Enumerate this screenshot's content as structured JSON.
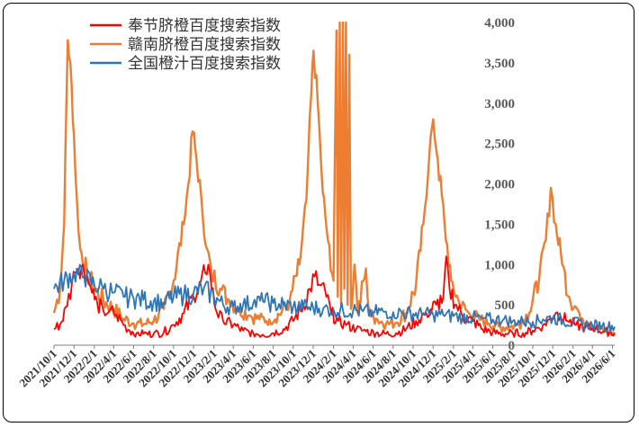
{
  "chart_data": {
    "type": "line",
    "title": "",
    "xlabel": "",
    "ylabel": "",
    "y_axis_side": "right",
    "ylim": [
      0,
      4000
    ],
    "y_ticks": [
      0,
      500,
      1000,
      1500,
      2000,
      2500,
      3000,
      3500,
      4000
    ],
    "y_tick_labels": [
      "0",
      "500",
      "1,000",
      "1,500",
      "2,000",
      "2,500",
      "3,000",
      "3,500",
      "4,000"
    ],
    "x_range": [
      "2021/10/1",
      "2026/6/8"
    ],
    "x_tick_labels": [
      "2021/10/1",
      "2021/12/1",
      "2022/2/1",
      "2022/4/1",
      "2022/6/1",
      "2022/8/1",
      "2022/10/1",
      "2022/12/1",
      "2023/2/1",
      "2023/4/1",
      "2023/6/1",
      "2023/8/1",
      "2023/10/1",
      "2023/12/1",
      "2024/2/1",
      "2024/4/1",
      "2024/6/1",
      "2024/8/1",
      "2024/10/1",
      "2024/12/1",
      "2025/2/1",
      "2025/4/1",
      "2025/6/1",
      "2025/8/1",
      "2025/10/1",
      "2025/12/1",
      "2026/2/1",
      "2026/4/1",
      "2026/6/1"
    ],
    "legend_position": "top-left",
    "grid": false,
    "series": [
      {
        "name": "奉节脐橙百度搜索指数",
        "color": "#ff0000",
        "points": [
          [
            "2021/10/1",
            200
          ],
          [
            "2021/10/20",
            260
          ],
          [
            "2021/11/10",
            480
          ],
          [
            "2021/11/25",
            780
          ],
          [
            "2021/12/5",
            900
          ],
          [
            "2021/12/15",
            950
          ],
          [
            "2021/12/28",
            1000
          ],
          [
            "2022/1/10",
            850
          ],
          [
            "2022/1/25",
            650
          ],
          [
            "2022/2/10",
            520
          ],
          [
            "2022/3/1",
            420
          ],
          [
            "2022/3/20",
            430
          ],
          [
            "2022/4/10",
            380
          ],
          [
            "2022/5/1",
            250
          ],
          [
            "2022/5/20",
            180
          ],
          [
            "2022/6/10",
            150
          ],
          [
            "2022/7/1",
            140
          ],
          [
            "2022/8/1",
            140
          ],
          [
            "2022/9/1",
            160
          ],
          [
            "2022/10/1",
            250
          ],
          [
            "2022/11/1",
            400
          ],
          [
            "2022/12/1",
            600
          ],
          [
            "2022/12/20",
            750
          ],
          [
            "2023/1/5",
            900
          ],
          [
            "2023/1/15",
            1000
          ],
          [
            "2023/1/25",
            700
          ],
          [
            "2023/2/10",
            400
          ],
          [
            "2023/3/1",
            300
          ],
          [
            "2023/4/1",
            250
          ],
          [
            "2023/5/1",
            180
          ],
          [
            "2023/6/1",
            150
          ],
          [
            "2023/7/1",
            130
          ],
          [
            "2023/8/1",
            150
          ],
          [
            "2023/9/1",
            200
          ],
          [
            "2023/10/1",
            300
          ],
          [
            "2023/11/1",
            500
          ],
          [
            "2023/11/20",
            700
          ],
          [
            "2023/12/5",
            850
          ],
          [
            "2023/12/20",
            750
          ],
          [
            "2024/1/10",
            600
          ],
          [
            "2024/1/25",
            400
          ],
          [
            "2024/2/15",
            300
          ],
          [
            "2024/3/10",
            250
          ],
          [
            "2024/4/10",
            200
          ],
          [
            "2024/5/10",
            170
          ],
          [
            "2024/6/10",
            150
          ],
          [
            "2024/7/10",
            140
          ],
          [
            "2024/8/10",
            150
          ],
          [
            "2024/9/10",
            200
          ],
          [
            "2024/10/10",
            300
          ],
          [
            "2024/11/10",
            400
          ],
          [
            "2024/12/10",
            500
          ],
          [
            "2025/1/1",
            600
          ],
          [
            "2025/1/10",
            1100
          ],
          [
            "2025/1/20",
            700
          ],
          [
            "2025/2/10",
            500
          ],
          [
            "2025/3/1",
            350
          ],
          [
            "2025/4/1",
            300
          ],
          [
            "2025/5/1",
            200
          ],
          [
            "2025/6/1",
            160
          ],
          [
            "2025/7/1",
            140
          ],
          [
            "2025/8/1",
            150
          ],
          [
            "2025/9/1",
            150
          ],
          [
            "2025/10/1",
            180
          ],
          [
            "2025/11/1",
            250
          ],
          [
            "2025/11/20",
            320
          ],
          [
            "2025/12/10",
            400
          ],
          [
            "2025/12/25",
            360
          ],
          [
            "2026/1/15",
            300
          ],
          [
            "2026/2/10",
            250
          ],
          [
            "2026/3/10",
            220
          ],
          [
            "2026/4/10",
            200
          ],
          [
            "2026/5/10",
            170
          ],
          [
            "2026/6/8",
            150
          ]
        ]
      },
      {
        "name": "赣南脐橙百度搜索指数",
        "color": "#ed7d31",
        "points": [
          [
            "2021/10/1",
            400
          ],
          [
            "2021/10/20",
            700
          ],
          [
            "2021/11/1",
            1500
          ],
          [
            "2021/11/8",
            3000
          ],
          [
            "2021/11/12",
            3780
          ],
          [
            "2021/11/20",
            3500
          ],
          [
            "2021/12/1",
            2600
          ],
          [
            "2021/12/10",
            1800
          ],
          [
            "2021/12/20",
            1200
          ],
          [
            "2022/1/10",
            900
          ],
          [
            "2022/2/1",
            700
          ],
          [
            "2022/3/1",
            550
          ],
          [
            "2022/4/1",
            450
          ],
          [
            "2022/5/1",
            330
          ],
          [
            "2022/6/1",
            270
          ],
          [
            "2022/7/1",
            260
          ],
          [
            "2022/8/1",
            300
          ],
          [
            "2022/9/1",
            450
          ],
          [
            "2022/10/1",
            800
          ],
          [
            "2022/11/1",
            1500
          ],
          [
            "2022/11/15",
            2000
          ],
          [
            "2022/11/28",
            2650
          ],
          [
            "2022/12/10",
            2300
          ],
          [
            "2022/12/25",
            1800
          ],
          [
            "2023/1/10",
            1200
          ],
          [
            "2023/1/25",
            900
          ],
          [
            "2023/2/20",
            700
          ],
          [
            "2023/3/20",
            550
          ],
          [
            "2023/4/20",
            450
          ],
          [
            "2023/5/20",
            370
          ],
          [
            "2023/6/20",
            320
          ],
          [
            "2023/7/20",
            320
          ],
          [
            "2023/8/20",
            380
          ],
          [
            "2023/9/20",
            550
          ],
          [
            "2023/10/20",
            1000
          ],
          [
            "2023/11/10",
            1800
          ],
          [
            "2023/11/25",
            3100
          ],
          [
            "2023/12/2",
            3650
          ],
          [
            "2023/12/15",
            3000
          ],
          [
            "2023/12/30",
            1900
          ],
          [
            "2024/1/15",
            1300
          ],
          [
            "2024/2/1",
            800
          ],
          [
            "2024/2/10",
            3900
          ],
          [
            "2024/2/14",
            600
          ],
          [
            "2024/2/20",
            4000
          ],
          [
            "2024/2/24",
            500
          ],
          [
            "2024/3/1",
            4000
          ],
          [
            "2024/3/5",
            700
          ],
          [
            "2024/3/10",
            4000
          ],
          [
            "2024/3/15",
            500
          ],
          [
            "2024/3/20",
            3600
          ],
          [
            "2024/3/25",
            450
          ],
          [
            "2024/4/5",
            1000
          ],
          [
            "2024/4/15",
            400
          ],
          [
            "2024/5/10",
            950
          ],
          [
            "2024/5/20",
            380
          ],
          [
            "2024/6/10",
            330
          ],
          [
            "2024/7/10",
            260
          ],
          [
            "2024/8/10",
            280
          ],
          [
            "2024/9/10",
            400
          ],
          [
            "2024/10/10",
            750
          ],
          [
            "2024/11/1",
            1500
          ],
          [
            "2024/11/20",
            2400
          ],
          [
            "2024/12/1",
            2800
          ],
          [
            "2024/12/15",
            2300
          ],
          [
            "2025/1/5",
            1500
          ],
          [
            "2025/1/25",
            800
          ],
          [
            "2025/2/20",
            500
          ],
          [
            "2025/3/20",
            400
          ],
          [
            "2025/4/20",
            330
          ],
          [
            "2025/5/20",
            270
          ],
          [
            "2025/6/20",
            230
          ],
          [
            "2025/7/20",
            220
          ],
          [
            "2025/8/20",
            260
          ],
          [
            "2025/9/20",
            400
          ],
          [
            "2025/10/20",
            800
          ],
          [
            "2025/11/10",
            1300
          ],
          [
            "2025/11/25",
            1950
          ],
          [
            "2025/12/10",
            1500
          ],
          [
            "2025/12/30",
            1000
          ],
          [
            "2026/1/20",
            600
          ],
          [
            "2026/2/20",
            400
          ],
          [
            "2026/3/20",
            280
          ],
          [
            "2026/4/20",
            200
          ],
          [
            "2026/5/20",
            160
          ],
          [
            "2026/6/8",
            140
          ]
        ]
      },
      {
        "name": "全国橙汁百度搜索指数",
        "color": "#2e75b6",
        "points": [
          [
            "2021/10/1",
            700
          ],
          [
            "2021/11/1",
            800
          ],
          [
            "2021/12/1",
            900
          ],
          [
            "2022/1/1",
            850
          ],
          [
            "2022/2/1",
            750
          ],
          [
            "2022/3/1",
            700
          ],
          [
            "2022/4/1",
            650
          ],
          [
            "2022/5/1",
            600
          ],
          [
            "2022/6/1",
            580
          ],
          [
            "2022/7/1",
            560
          ],
          [
            "2022/8/1",
            540
          ],
          [
            "2022/9/1",
            530
          ],
          [
            "2022/10/1",
            600
          ],
          [
            "2022/11/1",
            620
          ],
          [
            "2022/12/1",
            650
          ],
          [
            "2023/1/1",
            700
          ],
          [
            "2023/2/1",
            600
          ],
          [
            "2023/3/1",
            500
          ],
          [
            "2023/4/1",
            480
          ],
          [
            "2023/5/1",
            500
          ],
          [
            "2023/6/1",
            520
          ],
          [
            "2023/7/1",
            540
          ],
          [
            "2023/8/1",
            520
          ],
          [
            "2023/9/1",
            500
          ],
          [
            "2023/10/1",
            480
          ],
          [
            "2023/11/1",
            470
          ],
          [
            "2023/12/1",
            460
          ],
          [
            "2024/1/1",
            460
          ],
          [
            "2024/2/1",
            440
          ],
          [
            "2024/3/1",
            430
          ],
          [
            "2024/4/1",
            430
          ],
          [
            "2024/5/1",
            420
          ],
          [
            "2024/6/1",
            410
          ],
          [
            "2024/7/1",
            420
          ],
          [
            "2024/8/1",
            410
          ],
          [
            "2024/9/1",
            400
          ],
          [
            "2024/10/1",
            390
          ],
          [
            "2024/11/1",
            380
          ],
          [
            "2024/12/1",
            380
          ],
          [
            "2025/1/1",
            370
          ],
          [
            "2025/2/1",
            360
          ],
          [
            "2025/3/1",
            350
          ],
          [
            "2025/4/1",
            340
          ],
          [
            "2025/5/1",
            330
          ],
          [
            "2025/6/1",
            320
          ],
          [
            "2025/7/1",
            310
          ],
          [
            "2025/8/1",
            300
          ],
          [
            "2025/9/1",
            290
          ],
          [
            "2025/10/1",
            290
          ],
          [
            "2025/11/1",
            320
          ],
          [
            "2025/12/1",
            340
          ],
          [
            "2026/1/1",
            310
          ],
          [
            "2026/2/1",
            280
          ],
          [
            "2026/3/1",
            260
          ],
          [
            "2026/4/1",
            250
          ],
          [
            "2026/5/1",
            240
          ],
          [
            "2026/6/8",
            230
          ]
        ]
      }
    ]
  }
}
